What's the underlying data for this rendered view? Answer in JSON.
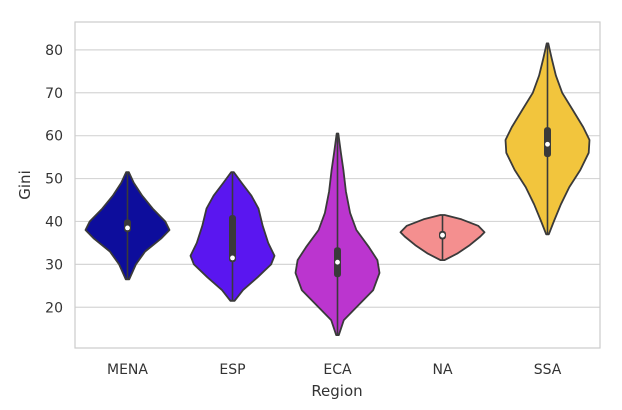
{
  "chart_data": {
    "type": "violin",
    "xlabel": "Region",
    "ylabel": "Gini",
    "ylim": [
      10.5,
      86.5
    ],
    "yticks": [
      20,
      30,
      40,
      50,
      60,
      70,
      80
    ],
    "grid": "horizontal",
    "categories": [
      "MENA",
      "ESP",
      "ECA",
      "NA",
      "SSA"
    ],
    "colors": [
      "#0d0d9c",
      "#5a16f0",
      "#bb35cf",
      "#f48f8f",
      "#f2c53d"
    ],
    "series": [
      {
        "name": "MENA",
        "min": 26.5,
        "max": 51.5,
        "q1": 37.5,
        "q3": 40.5,
        "median": 38.5,
        "density": [
          [
            26.5,
            0.04
          ],
          [
            30,
            0.2
          ],
          [
            33,
            0.42
          ],
          [
            36,
            0.8
          ],
          [
            38,
            1.0
          ],
          [
            40,
            0.9
          ],
          [
            43,
            0.6
          ],
          [
            46,
            0.35
          ],
          [
            49,
            0.15
          ],
          [
            51.5,
            0.03
          ]
        ]
      },
      {
        "name": "ESP",
        "min": 21.5,
        "max": 51.5,
        "q1": 30.5,
        "q3": 41.5,
        "median": 31.5,
        "density": [
          [
            21.5,
            0.05
          ],
          [
            24,
            0.25
          ],
          [
            27,
            0.6
          ],
          [
            30,
            0.92
          ],
          [
            32,
            1.0
          ],
          [
            35,
            0.85
          ],
          [
            39,
            0.72
          ],
          [
            43,
            0.62
          ],
          [
            46,
            0.45
          ],
          [
            49,
            0.22
          ],
          [
            51.5,
            0.03
          ]
        ]
      },
      {
        "name": "ECA",
        "min": 13.5,
        "max": 60.5,
        "q1": 27.0,
        "q3": 34.0,
        "median": 30.5,
        "density": [
          [
            13.5,
            0.03
          ],
          [
            17,
            0.15
          ],
          [
            20,
            0.45
          ],
          [
            24,
            0.85
          ],
          [
            28,
            1.0
          ],
          [
            31,
            0.95
          ],
          [
            34,
            0.75
          ],
          [
            38,
            0.45
          ],
          [
            42,
            0.3
          ],
          [
            47,
            0.2
          ],
          [
            52,
            0.14
          ],
          [
            56,
            0.08
          ],
          [
            60.5,
            0.02
          ]
        ]
      },
      {
        "name": "NA",
        "min": 31.0,
        "max": 41.5,
        "q1": 35.8,
        "q3": 37.8,
        "median": 36.8,
        "density": [
          [
            31,
            0.05
          ],
          [
            32.5,
            0.35
          ],
          [
            34.5,
            0.65
          ],
          [
            36.5,
            0.9
          ],
          [
            37.5,
            1.0
          ],
          [
            39,
            0.85
          ],
          [
            40.5,
            0.45
          ],
          [
            41.5,
            0.05
          ]
        ]
      },
      {
        "name": "SSA",
        "min": 37.0,
        "max": 81.5,
        "q1": 55.0,
        "q3": 62.0,
        "median": 58.0,
        "density": [
          [
            37,
            0.03
          ],
          [
            40,
            0.15
          ],
          [
            44,
            0.32
          ],
          [
            48,
            0.52
          ],
          [
            52,
            0.78
          ],
          [
            56,
            0.98
          ],
          [
            59,
            1.0
          ],
          [
            62,
            0.85
          ],
          [
            66,
            0.6
          ],
          [
            70,
            0.35
          ],
          [
            74,
            0.2
          ],
          [
            78,
            0.1
          ],
          [
            81.5,
            0.02
          ]
        ]
      }
    ]
  }
}
